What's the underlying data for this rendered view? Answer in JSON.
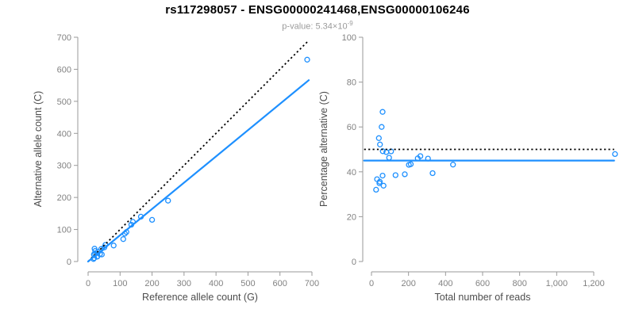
{
  "header": {
    "title": "rs117298057 - ENSG00000241468,ENSG00000106246",
    "pvalue_text": "p-value: 5.34×10",
    "pvalue_exponent": "-9"
  },
  "colors": {
    "points": "#1E90FF",
    "fit_line": "#1E90FF",
    "reference_line": "#000000",
    "axis": "#9a9a9a",
    "tick_labels": "#828282",
    "title": "#000000",
    "subtitle": "#9b9b9b"
  },
  "chart_data": [
    {
      "name": "allele-count-scatter",
      "type": "scatter",
      "title": "",
      "xlabel": "Reference allele count (G)",
      "ylabel": "Alternative allele count (C)",
      "xlim": [
        0,
        700
      ],
      "ylim": [
        0,
        700
      ],
      "grid": false,
      "xticks": {
        "values": [
          0,
          100,
          200,
          300,
          400,
          500,
          600,
          700
        ],
        "labels": [
          "0",
          "100",
          "200",
          "300",
          "400",
          "500",
          "600",
          "700"
        ]
      },
      "yticks": {
        "values": [
          0,
          100,
          200,
          300,
          400,
          500,
          600,
          700
        ],
        "labels": [
          "0",
          "100",
          "200",
          "300",
          "400",
          "500",
          "600",
          "700"
        ]
      },
      "points": [
        [
          17,
          8
        ],
        [
          19,
          11
        ],
        [
          28,
          15
        ],
        [
          29,
          16
        ],
        [
          37,
          23
        ],
        [
          43,
          22
        ],
        [
          18,
          22
        ],
        [
          22,
          24
        ],
        [
          22,
          33
        ],
        [
          20,
          40
        ],
        [
          31,
          30
        ],
        [
          41,
          39
        ],
        [
          51,
          44
        ],
        [
          54,
          52
        ],
        [
          80,
          50
        ],
        [
          110,
          70
        ],
        [
          115,
          87
        ],
        [
          120,
          92
        ],
        [
          135,
          115
        ],
        [
          140,
          124
        ],
        [
          165,
          140
        ],
        [
          200,
          130
        ],
        [
          250,
          190
        ],
        [
          685,
          630
        ]
      ],
      "lines": [
        {
          "name": "identity-line",
          "style": "dotted",
          "color": "#000000",
          "x1": 0,
          "y1": 0,
          "x2": 690,
          "y2": 690
        },
        {
          "name": "fit-line",
          "style": "solid",
          "color": "#1E90FF",
          "x1": 0,
          "y1": 0,
          "x2": 690,
          "y2": 566
        }
      ]
    },
    {
      "name": "percentage-alternative-scatter",
      "type": "scatter",
      "title": "",
      "xlabel": "Total number of reads",
      "ylabel": "Percentage alternative (C)",
      "xlim": [
        0,
        1320
      ],
      "ylim": [
        0,
        100
      ],
      "grid": false,
      "xticks": {
        "values": [
          0,
          200,
          400,
          600,
          800,
          1000,
          1200
        ],
        "labels": [
          "0",
          "200",
          "400",
          "600",
          "800",
          "1,000",
          "1,200"
        ]
      },
      "yticks": {
        "values": [
          0,
          20,
          40,
          60,
          80,
          100
        ],
        "labels": [
          "0",
          "20",
          "40",
          "60",
          "80",
          "100"
        ]
      },
      "points": [
        [
          25,
          32.0
        ],
        [
          30,
          36.7
        ],
        [
          43,
          34.9
        ],
        [
          45,
          35.6
        ],
        [
          60,
          38.3
        ],
        [
          65,
          33.8
        ],
        [
          40,
          55.0
        ],
        [
          46,
          52.2
        ],
        [
          55,
          60.0
        ],
        [
          60,
          66.7
        ],
        [
          61,
          49.2
        ],
        [
          80,
          48.8
        ],
        [
          95,
          46.3
        ],
        [
          106,
          49.1
        ],
        [
          130,
          38.5
        ],
        [
          180,
          38.9
        ],
        [
          202,
          43.1
        ],
        [
          212,
          43.4
        ],
        [
          250,
          46.0
        ],
        [
          264,
          47.0
        ],
        [
          305,
          45.9
        ],
        [
          330,
          39.4
        ],
        [
          440,
          43.2
        ],
        [
          1315,
          47.9
        ]
      ],
      "lines": [
        {
          "name": "expected-50pct-line",
          "style": "dotted",
          "color": "#000000",
          "x1": -40,
          "y1": 50,
          "x2": 1310,
          "y2": 50
        },
        {
          "name": "fit-line",
          "style": "solid",
          "color": "#1E90FF",
          "x1": -40,
          "y1": 45,
          "x2": 1310,
          "y2": 45
        }
      ]
    }
  ]
}
